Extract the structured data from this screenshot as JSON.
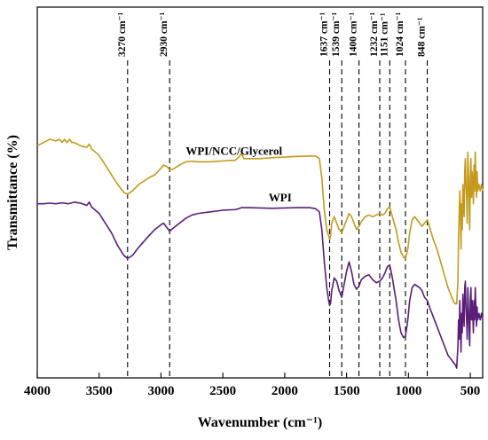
{
  "chart_data": {
    "type": "line",
    "xlabel": "Wavenumber (cm⁻¹)",
    "ylabel": "Transmittance (%)",
    "xlim": [
      4000,
      400
    ],
    "x_reversed": true,
    "xticks": [
      4000,
      3500,
      3000,
      2500,
      2000,
      1500,
      1000,
      500
    ],
    "yticks_shown": false,
    "grid": false,
    "colors": {
      "WPI/NCC/Glycerol": "#c49a1c",
      "WPI": "#5a1e78"
    },
    "series": [
      {
        "name": "WPI/NCC/Glycerol",
        "color": "#c49a1c",
        "label_x": 2800,
        "points": [
          [
            4000,
            62
          ],
          [
            3950,
            63
          ],
          [
            3900,
            64
          ],
          [
            3850,
            63.5
          ],
          [
            3820,
            64
          ],
          [
            3800,
            63
          ],
          [
            3780,
            64
          ],
          [
            3760,
            63
          ],
          [
            3740,
            64
          ],
          [
            3720,
            63
          ],
          [
            3700,
            63
          ],
          [
            3650,
            62
          ],
          [
            3600,
            61.5
          ],
          [
            3580,
            62.5
          ],
          [
            3560,
            61
          ],
          [
            3500,
            59
          ],
          [
            3450,
            56
          ],
          [
            3400,
            53
          ],
          [
            3350,
            50
          ],
          [
            3300,
            47.5
          ],
          [
            3270,
            47
          ],
          [
            3230,
            48
          ],
          [
            3180,
            50
          ],
          [
            3100,
            52
          ],
          [
            3050,
            53
          ],
          [
            3000,
            55
          ],
          [
            2980,
            56
          ],
          [
            2950,
            55.5
          ],
          [
            2930,
            54.5
          ],
          [
            2900,
            54.8
          ],
          [
            2850,
            56
          ],
          [
            2800,
            57
          ],
          [
            2750,
            57.2
          ],
          [
            2700,
            57
          ],
          [
            2600,
            57
          ],
          [
            2500,
            57.3
          ],
          [
            2400,
            57.5
          ],
          [
            2370,
            58.5
          ],
          [
            2350,
            59.5
          ],
          [
            2330,
            58
          ],
          [
            2300,
            58
          ],
          [
            2200,
            58
          ],
          [
            2100,
            58.3
          ],
          [
            2000,
            58.5
          ],
          [
            1900,
            58.7
          ],
          [
            1800,
            58.8
          ],
          [
            1750,
            58.8
          ],
          [
            1720,
            58
          ],
          [
            1700,
            52
          ],
          [
            1680,
            42
          ],
          [
            1660,
            36
          ],
          [
            1645,
            34
          ],
          [
            1637,
            33
          ],
          [
            1630,
            34
          ],
          [
            1620,
            38
          ],
          [
            1600,
            40
          ],
          [
            1580,
            38
          ],
          [
            1560,
            36
          ],
          [
            1539,
            35
          ],
          [
            1520,
            37
          ],
          [
            1500,
            39
          ],
          [
            1480,
            41
          ],
          [
            1460,
            40
          ],
          [
            1440,
            38
          ],
          [
            1420,
            36
          ],
          [
            1400,
            37
          ],
          [
            1380,
            38.5
          ],
          [
            1350,
            40
          ],
          [
            1320,
            40.5
          ],
          [
            1290,
            40
          ],
          [
            1260,
            40.5
          ],
          [
            1232,
            41
          ],
          [
            1210,
            40.5
          ],
          [
            1190,
            41
          ],
          [
            1170,
            42.5
          ],
          [
            1151,
            43
          ],
          [
            1130,
            40
          ],
          [
            1100,
            36
          ],
          [
            1080,
            32
          ],
          [
            1060,
            29
          ],
          [
            1040,
            27.5
          ],
          [
            1024,
            27
          ],
          [
            1005,
            30
          ],
          [
            990,
            35
          ],
          [
            970,
            39
          ],
          [
            950,
            40
          ],
          [
            930,
            39
          ],
          [
            910,
            38
          ],
          [
            890,
            37
          ],
          [
            870,
            38
          ],
          [
            848,
            39
          ],
          [
            830,
            37
          ],
          [
            800,
            33
          ],
          [
            770,
            30
          ],
          [
            740,
            26
          ],
          [
            710,
            22
          ],
          [
            680,
            18
          ],
          [
            650,
            15
          ],
          [
            625,
            13
          ],
          [
            610,
            13
          ],
          [
            600,
            20
          ],
          [
            595,
            34
          ],
          [
            590,
            40
          ],
          [
            585,
            48
          ],
          [
            580,
            42
          ],
          [
            575,
            30
          ],
          [
            570,
            44
          ],
          [
            565,
            36
          ],
          [
            560,
            50
          ],
          [
            555,
            44
          ],
          [
            550,
            40
          ],
          [
            545,
            54
          ],
          [
            540,
            58
          ],
          [
            535,
            50
          ],
          [
            530,
            46
          ],
          [
            525,
            38
          ],
          [
            520,
            60
          ],
          [
            515,
            54
          ],
          [
            510,
            46
          ],
          [
            505,
            36
          ],
          [
            500,
            52
          ],
          [
            495,
            58
          ],
          [
            490,
            46
          ],
          [
            485,
            54
          ],
          [
            480,
            50
          ],
          [
            475,
            44
          ],
          [
            470,
            56
          ],
          [
            465,
            48
          ],
          [
            460,
            60
          ],
          [
            455,
            52
          ],
          [
            450,
            46
          ],
          [
            445,
            54
          ],
          [
            440,
            48
          ],
          [
            430,
            50
          ],
          [
            420,
            48
          ],
          [
            410,
            50
          ],
          [
            400,
            48
          ]
        ]
      },
      {
        "name": "WPI",
        "color": "#5a1e78",
        "label_x": 2130,
        "points": [
          [
            4000,
            44
          ],
          [
            3950,
            44
          ],
          [
            3900,
            44.2
          ],
          [
            3850,
            44
          ],
          [
            3800,
            44.3
          ],
          [
            3750,
            44
          ],
          [
            3700,
            44.5
          ],
          [
            3650,
            44.2
          ],
          [
            3600,
            43.5
          ],
          [
            3580,
            44.5
          ],
          [
            3560,
            43
          ],
          [
            3500,
            41
          ],
          [
            3450,
            38
          ],
          [
            3400,
            35
          ],
          [
            3350,
            31
          ],
          [
            3300,
            28
          ],
          [
            3270,
            27
          ],
          [
            3230,
            28
          ],
          [
            3180,
            30.5
          ],
          [
            3100,
            34
          ],
          [
            3050,
            36
          ],
          [
            3000,
            37.5
          ],
          [
            2980,
            38
          ],
          [
            2950,
            36.5
          ],
          [
            2930,
            35.5
          ],
          [
            2900,
            36.5
          ],
          [
            2850,
            38
          ],
          [
            2800,
            39.5
          ],
          [
            2750,
            40.5
          ],
          [
            2700,
            41
          ],
          [
            2600,
            41.5
          ],
          [
            2500,
            42
          ],
          [
            2400,
            42.2
          ],
          [
            2370,
            42.5
          ],
          [
            2350,
            42.8
          ],
          [
            2300,
            42.8
          ],
          [
            2200,
            42.7
          ],
          [
            2100,
            42.6
          ],
          [
            2000,
            42.7
          ],
          [
            1900,
            42.8
          ],
          [
            1800,
            42.8
          ],
          [
            1750,
            42.5
          ],
          [
            1720,
            41.5
          ],
          [
            1700,
            36
          ],
          [
            1680,
            26
          ],
          [
            1660,
            18
          ],
          [
            1645,
            14
          ],
          [
            1637,
            12.5
          ],
          [
            1630,
            13
          ],
          [
            1620,
            17
          ],
          [
            1600,
            21
          ],
          [
            1580,
            20
          ],
          [
            1560,
            17
          ],
          [
            1539,
            15
          ],
          [
            1520,
            19
          ],
          [
            1500,
            23
          ],
          [
            1480,
            26
          ],
          [
            1460,
            23
          ],
          [
            1440,
            19
          ],
          [
            1420,
            17.5
          ],
          [
            1400,
            18.5
          ],
          [
            1380,
            20.5
          ],
          [
            1350,
            21.5
          ],
          [
            1320,
            22
          ],
          [
            1290,
            20.5
          ],
          [
            1260,
            19.5
          ],
          [
            1232,
            20
          ],
          [
            1210,
            21
          ],
          [
            1190,
            22.5
          ],
          [
            1170,
            24.5
          ],
          [
            1151,
            25
          ],
          [
            1130,
            21
          ],
          [
            1100,
            14
          ],
          [
            1080,
            8
          ],
          [
            1060,
            4
          ],
          [
            1040,
            2.5
          ],
          [
            1024,
            3
          ],
          [
            1005,
            8
          ],
          [
            990,
            14
          ],
          [
            970,
            18
          ],
          [
            950,
            19
          ],
          [
            930,
            18.5
          ],
          [
            910,
            18
          ],
          [
            890,
            17
          ],
          [
            870,
            15
          ],
          [
            848,
            14
          ],
          [
            830,
            12
          ],
          [
            800,
            9
          ],
          [
            770,
            6
          ],
          [
            740,
            3
          ],
          [
            710,
            0
          ],
          [
            680,
            -3
          ],
          [
            660,
            -4
          ],
          [
            640,
            -5
          ],
          [
            620,
            -6
          ],
          [
            610,
            -7
          ],
          [
            600,
            0
          ],
          [
            595,
            8
          ],
          [
            590,
            2
          ],
          [
            585,
            14
          ],
          [
            580,
            6
          ],
          [
            575,
            -2
          ],
          [
            570,
            10
          ],
          [
            565,
            4
          ],
          [
            560,
            16
          ],
          [
            555,
            10
          ],
          [
            550,
            6
          ],
          [
            545,
            18
          ],
          [
            540,
            20
          ],
          [
            535,
            12
          ],
          [
            530,
            8
          ],
          [
            525,
            2
          ],
          [
            520,
            18
          ],
          [
            515,
            12
          ],
          [
            510,
            6
          ],
          [
            505,
            0
          ],
          [
            500,
            14
          ],
          [
            495,
            18
          ],
          [
            490,
            8
          ],
          [
            485,
            14
          ],
          [
            480,
            10
          ],
          [
            475,
            4
          ],
          [
            470,
            14
          ],
          [
            465,
            8
          ],
          [
            460,
            18
          ],
          [
            455,
            12
          ],
          [
            450,
            6
          ],
          [
            445,
            12
          ],
          [
            440,
            8
          ],
          [
            430,
            10
          ],
          [
            420,
            8
          ],
          [
            410,
            10
          ],
          [
            400,
            8
          ]
        ]
      }
    ],
    "annotations": [
      {
        "text": "3270 cm⁻¹",
        "x": 3270
      },
      {
        "text": "2930 cm⁻¹",
        "x": 2930
      },
      {
        "text": "1637 cm⁻¹",
        "x": 1637
      },
      {
        "text": "1539 cm⁻¹",
        "x": 1539
      },
      {
        "text": "1400 cm⁻¹",
        "x": 1400
      },
      {
        "text": "1232 cm⁻¹",
        "x": 1232
      },
      {
        "text": "1151 cm⁻¹",
        "x": 1151
      },
      {
        "text": "1024 cm⁻¹",
        "x": 1024
      },
      {
        "text": "848 cm⁻¹",
        "x": 848
      }
    ]
  }
}
